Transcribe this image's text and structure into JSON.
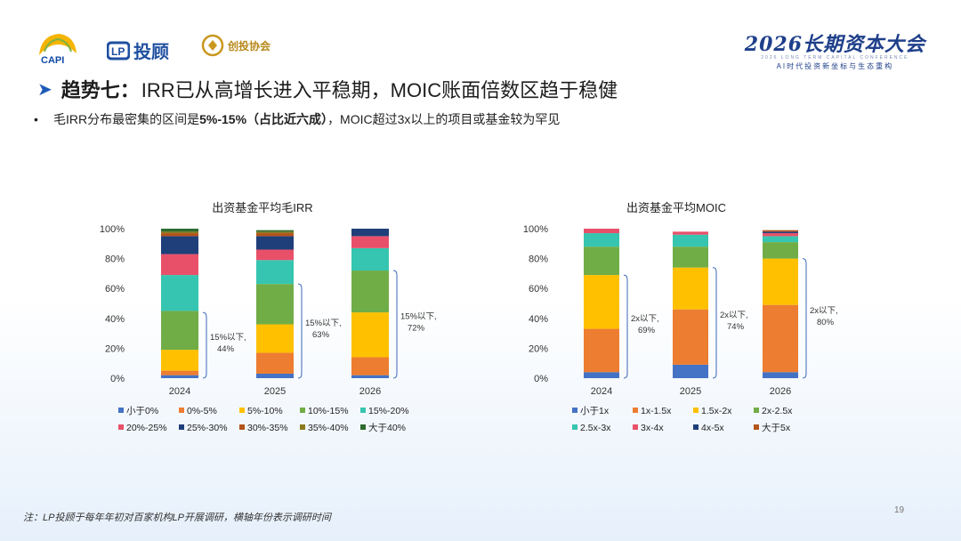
{
  "brand": {
    "capi": "CAPI",
    "lp": "投顾",
    "lp_mark": "LP",
    "cv": "创投协会",
    "conf_title": "2026长期资本大会",
    "conf_en": "2026 LONG TERM CAPITAL CONFERENCE",
    "conf_sub": "AI时代投资新坐标与生态重构"
  },
  "header": {
    "title_bold": "趋势七：",
    "title_rest": "IRR已从高增长进入平稳期，MOIC账面倍数区趋于稳健",
    "bullet_pre": "毛IRR分布最密集的区间是",
    "bullet_bold": "5%-15%（占比近六成）",
    "bullet_post": "，MOIC超过3x以上的项目或基金较为罕见"
  },
  "footnote": "注：LP投顾于每年年初对百家机构LP开展调研，横轴年份表示调研时间",
  "page_number": "19",
  "chart_data": [
    {
      "type": "bar",
      "stacked": true,
      "title": "出资基金平均毛IRR",
      "categories": [
        "2024",
        "2025",
        "2026"
      ],
      "ylim": [
        0,
        100
      ],
      "yticks": [
        "0%",
        "20%",
        "40%",
        "60%",
        "80%",
        "100%"
      ],
      "series": [
        {
          "name": "小于0%",
          "color": "#4472C4",
          "values": [
            2,
            3,
            2
          ]
        },
        {
          "name": "0%-5%",
          "color": "#ED7D31",
          "values": [
            3,
            14,
            12
          ]
        },
        {
          "name": "5%-10%",
          "color": "#FFC000",
          "values": [
            14,
            19,
            30
          ]
        },
        {
          "name": "10%-15%",
          "color": "#70AD47",
          "values": [
            26,
            27,
            28
          ]
        },
        {
          "name": "15%-20%",
          "color": "#36C5B0",
          "values": [
            24,
            16,
            15
          ]
        },
        {
          "name": "20%-25%",
          "color": "#E8506A",
          "values": [
            14,
            7,
            8
          ]
        },
        {
          "name": "25%-30%",
          "color": "#1F3F7A",
          "values": [
            12,
            9,
            5
          ]
        },
        {
          "name": "30%-35%",
          "color": "#B5541C",
          "values": [
            2,
            2,
            0
          ]
        },
        {
          "name": "35%-40%",
          "color": "#8C7A1F",
          "values": [
            1,
            1,
            0
          ]
        },
        {
          "name": "大于40%",
          "color": "#2E6B2E",
          "values": [
            2,
            1,
            0
          ]
        }
      ],
      "annotations": [
        {
          "category": "2024",
          "line1": "15%以下,",
          "line2": "44%",
          "value": 44
        },
        {
          "category": "2025",
          "line1": "15%以下,",
          "line2": "63%",
          "value": 63
        },
        {
          "category": "2026",
          "line1": "15%以下,",
          "line2": "72%",
          "value": 72
        }
      ]
    },
    {
      "type": "bar",
      "stacked": true,
      "title": "出资基金平均MOIC",
      "categories": [
        "2024",
        "2025",
        "2026"
      ],
      "ylim": [
        0,
        100
      ],
      "yticks": [
        "0%",
        "20%",
        "40%",
        "60%",
        "80%",
        "100%"
      ],
      "series": [
        {
          "name": "小于1x",
          "color": "#4472C4",
          "values": [
            4,
            9,
            4
          ]
        },
        {
          "name": "1x-1.5x",
          "color": "#ED7D31",
          "values": [
            29,
            37,
            45
          ]
        },
        {
          "name": "1.5x-2x",
          "color": "#FFC000",
          "values": [
            36,
            28,
            31
          ]
        },
        {
          "name": "2x-2.5x",
          "color": "#70AD47",
          "values": [
            19,
            14,
            11
          ]
        },
        {
          "name": "2.5x-3x",
          "color": "#36C5B0",
          "values": [
            9,
            8,
            4
          ]
        },
        {
          "name": "3x-4x",
          "color": "#E8506A",
          "values": [
            3,
            2,
            2
          ]
        },
        {
          "name": "4x-5x",
          "color": "#1F3F7A",
          "values": [
            0,
            0,
            1
          ]
        },
        {
          "name": "大于5x",
          "color": "#B5541C",
          "values": [
            0,
            0,
            1
          ]
        }
      ],
      "annotations": [
        {
          "category": "2024",
          "line1": "2x以下,",
          "line2": "69%",
          "value": 69
        },
        {
          "category": "2025",
          "line1": "2x以下,",
          "line2": "74%",
          "value": 74
        },
        {
          "category": "2026",
          "line1": "2x以下,",
          "line2": "80%",
          "value": 80
        }
      ]
    }
  ]
}
